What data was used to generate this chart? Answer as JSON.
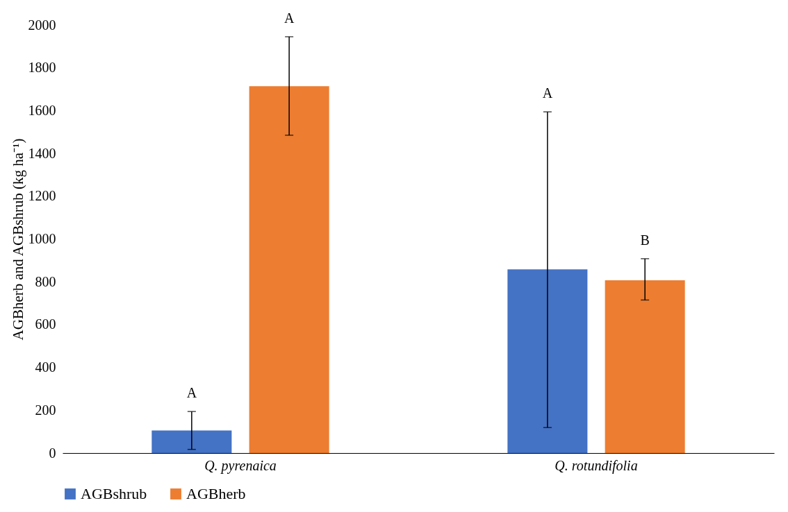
{
  "chart_data": {
    "type": "bar",
    "ylabel": "AGBherb and AGBshrub (kg ha⁻¹)",
    "categories": [
      "Q. pyrenaica",
      "Q. rotundifolia"
    ],
    "series": [
      {
        "name": "AGBshrub",
        "color": "#4472c4",
        "values": [
          105,
          858
        ],
        "errors": [
          [
            17,
            194
          ],
          [
            119,
            1594
          ]
        ]
      },
      {
        "name": "AGBherb",
        "color": "#ed7d31",
        "values": [
          1714,
          807
        ],
        "errors": [
          [
            1485,
            1945
          ],
          [
            715,
            908
          ]
        ]
      }
    ],
    "ylim": [
      0,
      2000
    ],
    "yticks": [
      0,
      200,
      400,
      600,
      800,
      1000,
      1200,
      1400,
      1600,
      1800,
      2000
    ],
    "grid": false,
    "legend": "bottom",
    "annotations": [
      "A",
      "A",
      "A",
      "B"
    ]
  }
}
